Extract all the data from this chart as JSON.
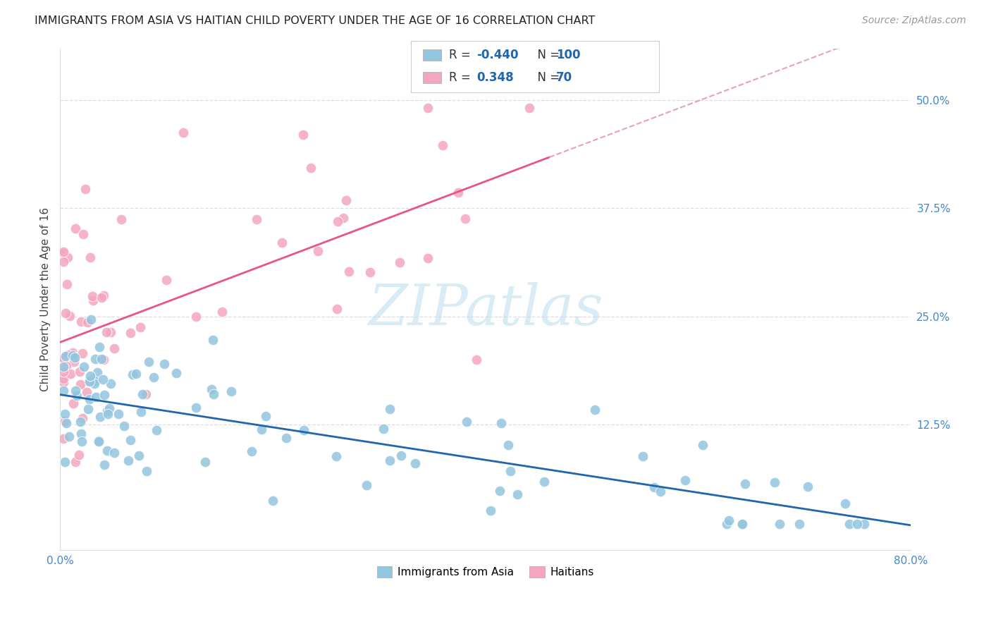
{
  "title": "IMMIGRANTS FROM ASIA VS HAITIAN CHILD POVERTY UNDER THE AGE OF 16 CORRELATION CHART",
  "source": "Source: ZipAtlas.com",
  "ylabel": "Child Poverty Under the Age of 16",
  "yticks": [
    "50.0%",
    "37.5%",
    "25.0%",
    "12.5%"
  ],
  "ytick_vals": [
    0.5,
    0.375,
    0.25,
    0.125
  ],
  "xlim": [
    0.0,
    0.8
  ],
  "ylim": [
    -0.02,
    0.56
  ],
  "legend_labels": [
    "Immigrants from Asia",
    "Haitians"
  ],
  "legend_R": [
    -0.44,
    0.348
  ],
  "legend_N": [
    100,
    70
  ],
  "blue_color": "#92C5DE",
  "pink_color": "#F4A6BE",
  "blue_line_color": "#2166AC",
  "pink_line_color": "#E8538A",
  "dash_line_color": "#E8A0BC",
  "background_color": "#FFFFFF",
  "grid_color": "#DDDDDD",
  "title_color": "#222222",
  "source_color": "#999999",
  "axis_color": "#4488CC",
  "ylabel_color": "#444444"
}
